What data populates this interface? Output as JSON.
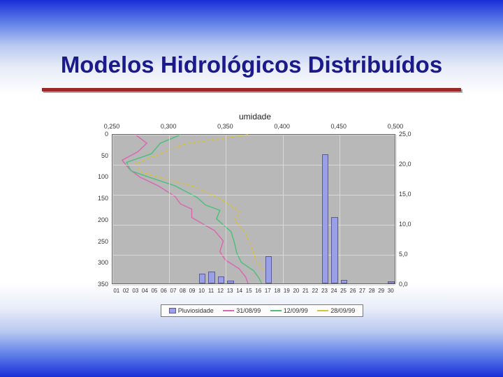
{
  "page": {
    "title": "Modelos Hidrológicos Distribuídos",
    "title_color": "#1a1a8a",
    "title_fontsize": 33,
    "rule_color": "#9a2a2a"
  },
  "chart": {
    "title": "umidade",
    "title_fontsize": 12,
    "plot_bg": "#b8b8b8",
    "grid_color": "#d8d8d8",
    "axis_text_color": "#333333",
    "top_axis": {
      "min": 0.25,
      "max": 0.5,
      "ticks": [
        0.25,
        0.3,
        0.35,
        0.4,
        0.45,
        0.5
      ],
      "labels": [
        "0,250",
        "0,300",
        "0,350",
        "0,400",
        "0,450",
        "0,500"
      ],
      "fontsize": 9
    },
    "y1_axis": {
      "min": 0,
      "max": 350,
      "reversed": true,
      "ticks": [
        0,
        50,
        100,
        150,
        200,
        250,
        300,
        350
      ],
      "labels": [
        "0",
        "50",
        "100",
        "150",
        "200",
        "250",
        "300",
        "350"
      ],
      "fontsize": 9
    },
    "y2_axis": {
      "min": 0.0,
      "max": 25.0,
      "ticks": [
        0.0,
        5.0,
        10.0,
        15.0,
        20.0,
        25.0
      ],
      "labels": [
        "0,0",
        "5,0",
        "10,0",
        "15,0",
        "20,0",
        "25,0"
      ],
      "fontsize": 9
    },
    "x_axis": {
      "categories": [
        "01",
        "02",
        "03",
        "04",
        "05",
        "06",
        "07",
        "08",
        "09",
        "10",
        "11",
        "12",
        "13",
        "14",
        "15",
        "16",
        "17",
        "18",
        "19",
        "20",
        "21",
        "22",
        "23",
        "24",
        "25",
        "26",
        "27",
        "28",
        "29",
        "30"
      ],
      "fontsize": 8
    },
    "bars": {
      "label": "Pluviosidade",
      "fill": "#9aa0e8",
      "border": "#5a5a9a",
      "width_ratio": 0.7,
      "values": [
        0,
        0,
        0,
        0,
        0,
        0,
        0,
        0,
        0,
        1.6,
        2.0,
        1.2,
        0.5,
        0,
        0,
        0,
        4.5,
        0,
        0,
        0,
        0,
        0,
        21.5,
        11.0,
        0.6,
        0,
        0,
        0,
        0,
        0.3
      ]
    },
    "lines": [
      {
        "label": "31/08/99",
        "color": "#d869b0",
        "width": 1.5,
        "x": [
          0.27,
          0.28,
          0.272,
          0.258,
          0.265,
          0.274,
          0.29,
          0.305,
          0.31,
          0.32,
          0.32,
          0.34,
          0.348,
          0.345,
          0.35,
          0.362,
          0.368,
          0.37
        ],
        "depth": [
          0,
          20,
          40,
          60,
          82,
          100,
          120,
          145,
          163,
          175,
          195,
          225,
          250,
          275,
          295,
          315,
          335,
          350
        ]
      },
      {
        "label": "12/09/99",
        "color": "#4fbf7a",
        "width": 1.5,
        "x": [
          0.31,
          0.292,
          0.284,
          0.262,
          0.266,
          0.282,
          0.305,
          0.325,
          0.332,
          0.345,
          0.342,
          0.355,
          0.358,
          0.36,
          0.364,
          0.375,
          0.38,
          0.382
        ],
        "depth": [
          0,
          20,
          45,
          65,
          85,
          100,
          120,
          148,
          165,
          178,
          198,
          228,
          255,
          278,
          300,
          320,
          338,
          350
        ]
      },
      {
        "label": "28/09/99",
        "color": "#d8c23a",
        "width": 1.5,
        "dash": "4,3",
        "x": [
          0.37,
          0.312,
          0.292,
          0.27,
          0.275,
          0.294,
          0.322,
          0.345,
          0.355,
          0.363,
          0.358,
          0.368,
          0.372,
          0.375,
          0.378,
          0.386,
          0.39,
          0.393
        ],
        "depth": [
          0,
          22,
          45,
          68,
          88,
          102,
          122,
          150,
          168,
          182,
          200,
          232,
          258,
          280,
          302,
          322,
          340,
          350
        ]
      }
    ],
    "legend": {
      "border_color": "#777777",
      "bg": "#fcfcfc",
      "fontsize": 9
    }
  }
}
